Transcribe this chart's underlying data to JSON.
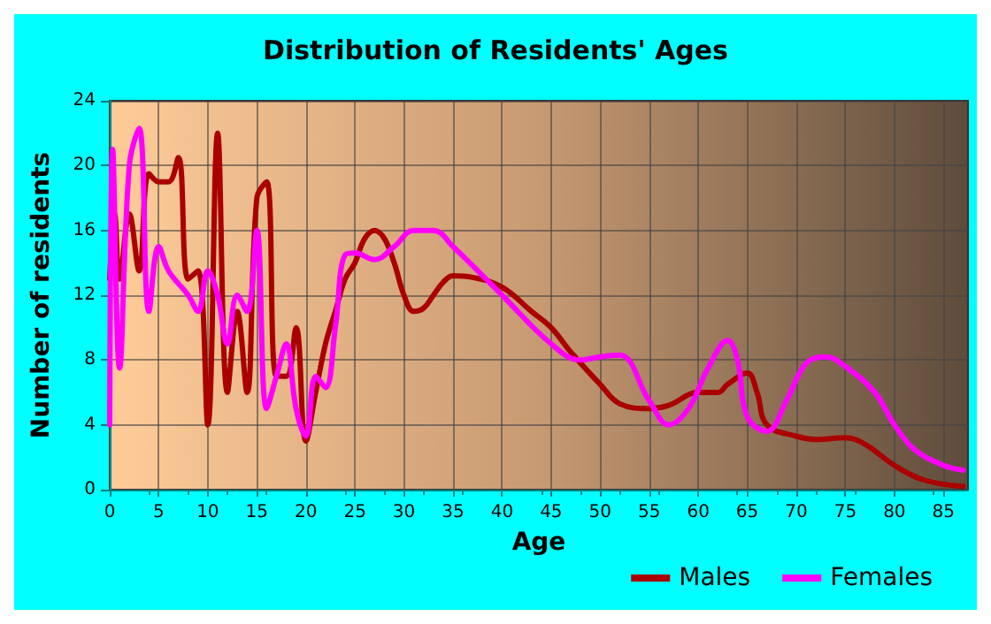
{
  "chart_data": {
    "type": "line",
    "title": "Distribution of Residents' Ages",
    "xlabel": "Age",
    "ylabel": "Number of residents",
    "xlim": [
      0,
      87.5
    ],
    "xticks": [
      0,
      5,
      10,
      15,
      20,
      25,
      30,
      35,
      40,
      45,
      50,
      55,
      60,
      65,
      70,
      75,
      80,
      85
    ],
    "ylim": [
      0,
      24
    ],
    "yticks": [
      0,
      4,
      8,
      12,
      16,
      20,
      24
    ],
    "grid": true,
    "legend": "bottom right",
    "marker": "none",
    "line_style": "solid",
    "series": [
      {
        "name": "Males",
        "color": "#aa0000",
        "x": [
          0,
          0.5,
          1,
          2,
          3,
          4,
          5,
          6,
          7,
          8,
          9,
          10,
          11,
          12,
          13,
          14,
          15,
          16,
          17,
          18,
          19,
          20,
          21,
          22,
          23,
          24,
          25,
          26,
          27,
          28,
          29,
          30,
          31,
          32,
          33,
          34,
          35,
          37,
          40,
          43,
          45,
          47,
          50,
          52,
          55,
          57,
          60,
          62,
          63,
          65,
          66,
          67,
          70,
          72,
          75,
          77,
          80,
          83,
          87
        ],
        "values": [
          13,
          17,
          13,
          17,
          13.5,
          19.5,
          19,
          19,
          20.5,
          13,
          13.5,
          4,
          22,
          6,
          11,
          6,
          18,
          19,
          7,
          7,
          10,
          3,
          6,
          9,
          11,
          13,
          14,
          15.5,
          16,
          15.5,
          14,
          12,
          11,
          11.2,
          12,
          12.8,
          13.2,
          13.1,
          12.5,
          11,
          10,
          8.5,
          6.5,
          5.3,
          5,
          5.2,
          6,
          6,
          6.5,
          7.2,
          6,
          4,
          3.3,
          3.1,
          3.2,
          2.8,
          1.5,
          0.6,
          0.2
        ]
      },
      {
        "name": "Females",
        "color": "#ff00ff",
        "x": [
          0,
          0.3,
          1,
          2,
          3,
          4,
          5,
          6,
          8,
          9,
          10,
          11,
          12,
          13,
          14,
          15,
          16,
          17,
          18,
          19,
          20,
          21,
          22,
          23,
          24,
          25,
          27,
          29,
          31,
          33,
          35,
          40,
          45,
          48,
          50,
          52,
          55,
          57,
          59,
          61,
          63,
          64,
          65,
          67,
          69,
          71,
          73,
          75,
          78,
          80,
          82,
          85,
          87
        ],
        "values": [
          4,
          21,
          7.5,
          20,
          22.3,
          11,
          15,
          13.5,
          12,
          11,
          13.5,
          12,
          9,
          12,
          11,
          16,
          5,
          7,
          9,
          5,
          3.3,
          7,
          6.3,
          10,
          14.5,
          14.6,
          14.2,
          15,
          16,
          16,
          15,
          12,
          9,
          8,
          8.2,
          8.3,
          5.5,
          4,
          5,
          7.5,
          9.2,
          8,
          4.5,
          3.6,
          5.5,
          7.8,
          8.2,
          7.6,
          6,
          4,
          2.5,
          1.5,
          1.2
        ]
      }
    ]
  }
}
